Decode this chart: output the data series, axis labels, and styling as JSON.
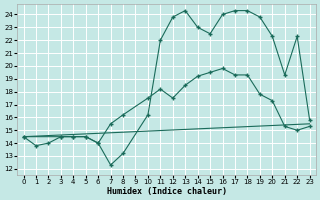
{
  "xlabel": "Humidex (Indice chaleur)",
  "xlim": [
    -0.5,
    23.5
  ],
  "ylim": [
    11.5,
    24.8
  ],
  "yticks": [
    12,
    13,
    14,
    15,
    16,
    17,
    18,
    19,
    20,
    21,
    22,
    23,
    24
  ],
  "xticks": [
    0,
    1,
    2,
    3,
    4,
    5,
    6,
    7,
    8,
    9,
    10,
    11,
    12,
    13,
    14,
    15,
    16,
    17,
    18,
    19,
    20,
    21,
    22,
    23
  ],
  "bg_color": "#c5e8e5",
  "grid_color": "#ffffff",
  "line_color": "#1a6b5a",
  "line1_x": [
    0,
    1,
    2,
    3,
    4,
    5,
    6,
    7,
    8,
    10,
    11,
    12,
    13,
    14,
    15,
    16,
    17,
    18,
    19,
    20,
    21,
    22,
    23
  ],
  "line1_y": [
    14.5,
    13.8,
    14.0,
    14.5,
    14.5,
    14.5,
    14.0,
    12.3,
    13.2,
    16.2,
    22.0,
    23.8,
    24.3,
    23.0,
    22.5,
    24.0,
    24.3,
    24.3,
    23.8,
    22.3,
    19.3,
    22.3,
    15.8
  ],
  "line2_x": [
    0,
    3,
    4,
    5,
    6,
    7,
    8,
    10,
    11,
    12,
    13,
    14,
    15,
    16,
    17,
    18,
    19,
    20,
    21,
    22,
    23
  ],
  "line2_y": [
    14.5,
    14.5,
    14.5,
    14.5,
    14.0,
    15.5,
    16.2,
    17.5,
    18.2,
    17.5,
    18.5,
    19.2,
    19.5,
    19.8,
    19.3,
    19.3,
    17.8,
    17.3,
    15.3,
    15.0,
    15.3
  ],
  "line3_x": [
    0,
    23
  ],
  "line3_y": [
    14.5,
    15.5
  ]
}
